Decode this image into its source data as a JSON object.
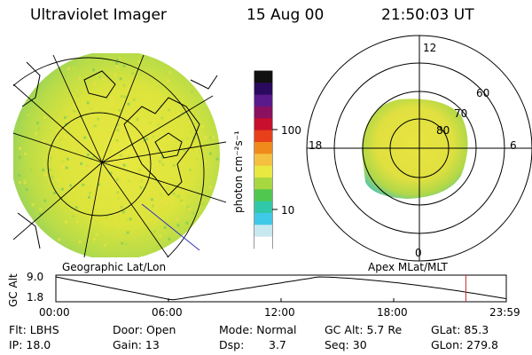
{
  "header": {
    "instrument": "Ultraviolet Imager",
    "date": "15 Aug 00",
    "time": "21:50:03 UT"
  },
  "colorbar": {
    "unit_label": "photon cm⁻²s⁻¹",
    "tick_100": "100",
    "tick_10": "10",
    "colors_top_to_bottom": [
      "#111111",
      "#2a0a5e",
      "#5a1a8c",
      "#8a1060",
      "#c8102e",
      "#e8401a",
      "#f08a1a",
      "#f5c040",
      "#e8e840",
      "#a8d840",
      "#50c850",
      "#30c8a8",
      "#40c8e8",
      "#c8e8f0",
      "#ffffff"
    ]
  },
  "maps": {
    "left_caption": "Geographic Lat/Lon",
    "right_caption": "Apex MLat/MLT"
  },
  "polar_grid": {
    "mlt_top": "12",
    "mlt_left": "18",
    "mlt_right": "6",
    "mlt_bottom": "0",
    "lat_60": "60",
    "lat_70": "70",
    "lat_80": "80"
  },
  "altitude_plot": {
    "ylabel": "GC Alt",
    "ytick_top": "9.0",
    "ytick_bottom": "1.8",
    "xticks": [
      "00:00",
      "06:00",
      "12:00",
      "18:00",
      "23:59"
    ],
    "current_time_marker_hours": 21.83
  },
  "info": {
    "filter": "Flt: LBHS",
    "door": "Door: Open",
    "mode": "Mode: Normal",
    "gc_alt": "GC Alt: 5.7 Re",
    "glat": "GLat: 85.3",
    "ip": "IP: 18.0",
    "gain": "Gain: 13",
    "dsp_label": "Dsp:",
    "dsp_value": "3.7",
    "seq": "Seq: 30",
    "glon": "GLon: 279.8"
  }
}
